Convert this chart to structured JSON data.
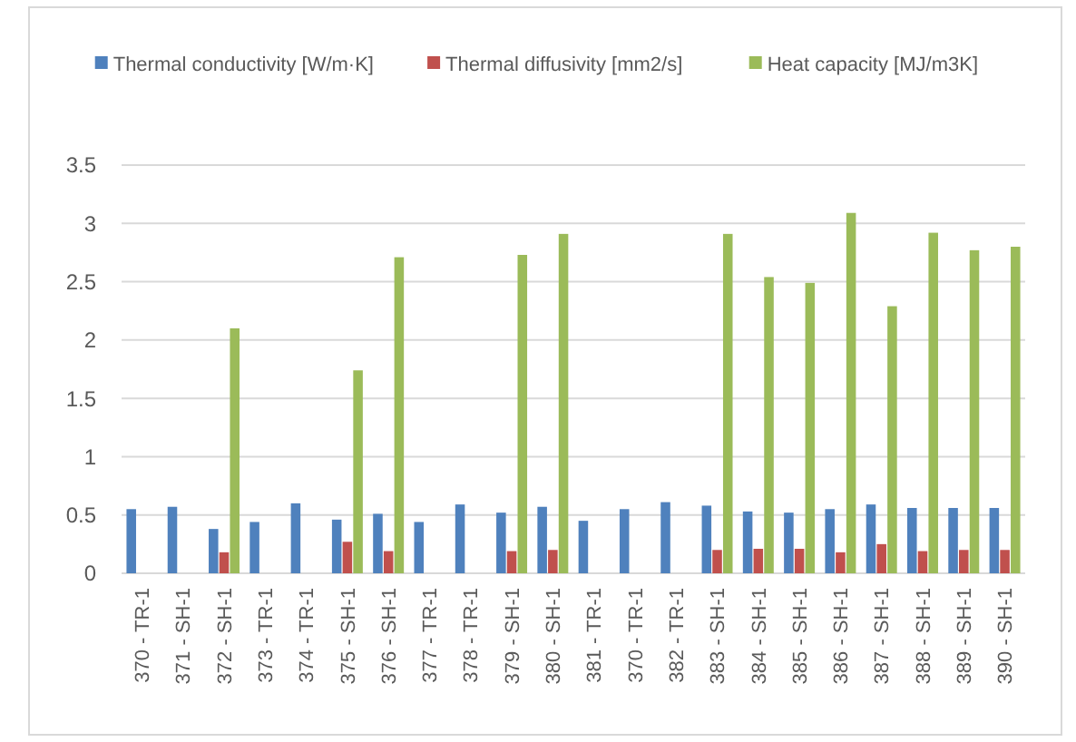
{
  "chart_data": {
    "type": "bar",
    "categories": [
      "370 - TR-1",
      "371 - SH-1",
      "372 - SH-1",
      "373 - TR-1",
      "374 - TR-1",
      "375 - SH-1",
      "376 - SH-1",
      "377 - TR-1",
      "378 - TR-1",
      "379 - SH-1",
      "380 - SH-1",
      "381 - TR-1",
      "370 - TR-1",
      "382 - TR-1",
      "383 - SH-1",
      "384 - SH-1",
      "385 - SH-1",
      "386 - SH-1",
      "387 - SH-1",
      "388 - SH-1",
      "389 - SH-1",
      "390 - SH-1"
    ],
    "series": [
      {
        "name": "Thermal conductivity [W/m·K]",
        "color": "#4f81bd",
        "values": [
          0.55,
          0.57,
          0.38,
          0.44,
          0.6,
          0.46,
          0.51,
          0.44,
          0.59,
          0.52,
          0.57,
          0.45,
          0.55,
          0.61,
          0.58,
          0.53,
          0.52,
          0.55,
          0.59,
          0.56,
          0.56,
          0.56
        ]
      },
      {
        "name": "Thermal diffusivity [mm2/s]",
        "color": "#c0504d",
        "values": [
          null,
          null,
          0.18,
          null,
          null,
          0.27,
          0.19,
          null,
          null,
          0.19,
          0.2,
          null,
          null,
          null,
          0.2,
          0.21,
          0.21,
          0.18,
          0.25,
          0.19,
          0.2,
          0.2
        ]
      },
      {
        "name": "Heat capacity [MJ/m3K]",
        "color": "#9bbb59",
        "values": [
          null,
          null,
          2.1,
          null,
          null,
          1.74,
          2.71,
          null,
          null,
          2.73,
          2.91,
          null,
          null,
          null,
          2.91,
          2.54,
          2.49,
          3.09,
          2.29,
          2.92,
          2.77,
          2.8
        ]
      }
    ],
    "ylim": [
      0,
      3.5
    ],
    "yticks": [
      0,
      0.5,
      1,
      1.5,
      2,
      2.5,
      3,
      3.5
    ],
    "grid": "y",
    "legend": "top"
  }
}
